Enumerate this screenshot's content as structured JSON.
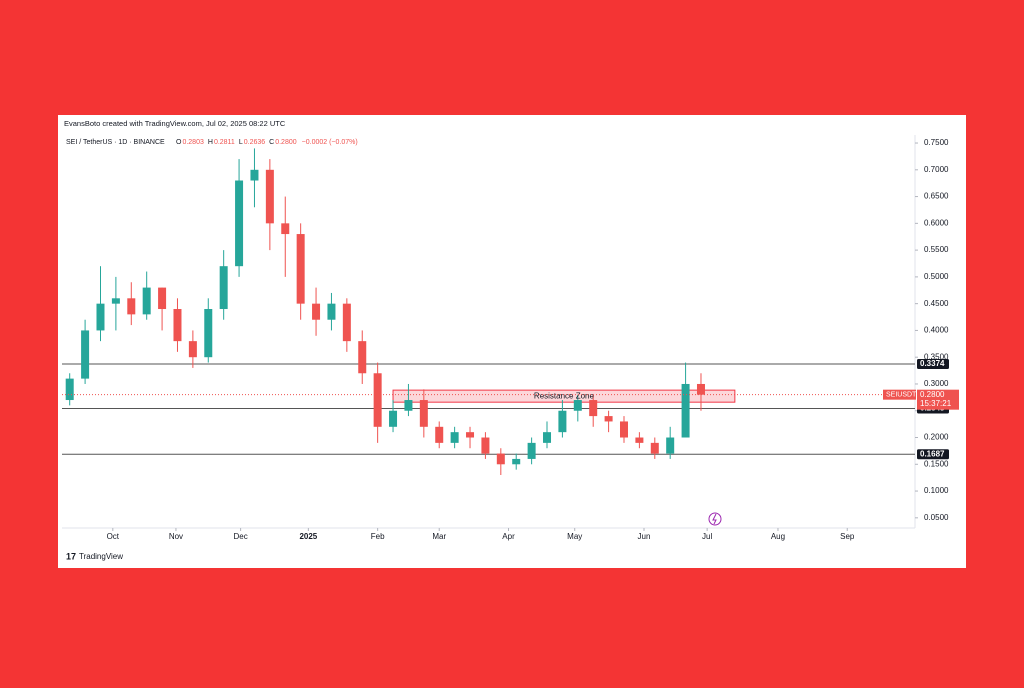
{
  "chart_data": {
    "type": "candlestick",
    "credit": "EvansBoto created with TradingView.com, Jul 02, 2025 08:22 UTC",
    "title": "SEI / TetherUS · 1D · BINANCE",
    "ohlc_legend": [
      {
        "key": "O",
        "text": "0.2803"
      },
      {
        "key": "H",
        "text": "0.2811"
      },
      {
        "key": "L",
        "text": "0.2636"
      },
      {
        "key": "C",
        "text": "0.2800"
      },
      {
        "key": "",
        "text": "−0.0002 (−0.07%)"
      }
    ],
    "open": [
      0.27,
      0.31,
      0.4,
      0.45,
      0.46,
      0.43,
      0.48,
      0.44,
      0.38,
      0.35,
      0.44,
      0.52,
      0.68,
      0.7,
      0.6,
      0.58,
      0.45,
      0.42,
      0.45,
      0.38,
      0.32,
      0.22,
      0.25,
      0.27,
      0.22,
      0.19,
      0.21,
      0.2,
      0.17,
      0.15,
      0.16,
      0.19,
      0.21,
      0.25,
      0.27,
      0.24,
      0.23,
      0.2,
      0.19,
      0.17,
      0.2,
      0.3
    ],
    "high": [
      0.32,
      0.42,
      0.52,
      0.5,
      0.49,
      0.51,
      0.48,
      0.46,
      0.4,
      0.46,
      0.55,
      0.72,
      0.74,
      0.72,
      0.65,
      0.6,
      0.48,
      0.47,
      0.46,
      0.4,
      0.34,
      0.27,
      0.3,
      0.29,
      0.23,
      0.22,
      0.22,
      0.21,
      0.18,
      0.17,
      0.2,
      0.23,
      0.27,
      0.28,
      0.28,
      0.25,
      0.24,
      0.21,
      0.2,
      0.22,
      0.34,
      0.32
    ],
    "low": [
      0.26,
      0.3,
      0.38,
      0.4,
      0.41,
      0.42,
      0.4,
      0.36,
      0.33,
      0.34,
      0.42,
      0.5,
      0.63,
      0.55,
      0.5,
      0.42,
      0.39,
      0.4,
      0.36,
      0.3,
      0.19,
      0.21,
      0.24,
      0.2,
      0.18,
      0.18,
      0.18,
      0.16,
      0.13,
      0.14,
      0.15,
      0.18,
      0.2,
      0.23,
      0.22,
      0.21,
      0.19,
      0.18,
      0.16,
      0.16,
      0.2,
      0.25
    ],
    "close": [
      0.31,
      0.4,
      0.45,
      0.46,
      0.43,
      0.48,
      0.44,
      0.38,
      0.35,
      0.44,
      0.52,
      0.68,
      0.7,
      0.6,
      0.58,
      0.45,
      0.42,
      0.45,
      0.38,
      0.32,
      0.22,
      0.25,
      0.27,
      0.22,
      0.19,
      0.21,
      0.2,
      0.17,
      0.15,
      0.16,
      0.19,
      0.21,
      0.25,
      0.27,
      0.24,
      0.23,
      0.2,
      0.19,
      0.17,
      0.2,
      0.3,
      0.28
    ],
    "up_color": "#26a69a",
    "down_color": "#ef5350",
    "xlim": [
      0,
      55.4
    ],
    "xticks": [
      {
        "value": 3.3,
        "label": "Oct"
      },
      {
        "value": 7.4,
        "label": "Nov"
      },
      {
        "value": 11.6,
        "label": "Dec"
      },
      {
        "value": 16.0,
        "label": "2025"
      },
      {
        "value": 20.5,
        "label": "Feb"
      },
      {
        "value": 24.5,
        "label": "Mar"
      },
      {
        "value": 29.0,
        "label": "Apr"
      },
      {
        "value": 33.3,
        "label": "May"
      },
      {
        "value": 37.8,
        "label": "Jun"
      },
      {
        "value": 41.9,
        "label": "Jul"
      },
      {
        "value": 46.5,
        "label": "Aug"
      },
      {
        "value": 51.0,
        "label": "Sep"
      }
    ],
    "ylim": [
      0.031,
      0.765
    ],
    "yticks": [
      {
        "value": 0.05,
        "label": "0.0500"
      },
      {
        "value": 0.1,
        "label": "0.1000"
      },
      {
        "value": 0.15,
        "label": "0.1500"
      },
      {
        "value": 0.2,
        "label": "0.2000"
      },
      {
        "value": 0.25,
        "label": "0.2500"
      },
      {
        "value": 0.3,
        "label": "0.3000"
      },
      {
        "value": 0.35,
        "label": "0.3500"
      },
      {
        "value": 0.4,
        "label": "0.4000"
      },
      {
        "value": 0.45,
        "label": "0.4500"
      },
      {
        "value": 0.5,
        "label": "0.5000"
      },
      {
        "value": 0.55,
        "label": "0.5500"
      },
      {
        "value": 0.6,
        "label": "0.6000"
      },
      {
        "value": 0.65,
        "label": "0.6500"
      },
      {
        "value": 0.7,
        "label": "0.7000"
      },
      {
        "value": 0.75,
        "label": "0.7500"
      }
    ],
    "levels": [
      0.3374,
      0.2543,
      0.1687
    ],
    "zone": {
      "label": "Resistance Zone",
      "xlim": [
        21.5,
        43.7
      ],
      "ylim": [
        0.266,
        0.2885
      ]
    },
    "price": {
      "symbol": "SEIUSDT",
      "value": 0.28,
      "label": "0.2800",
      "countdown": "15:37:21"
    },
    "brand": "TradingView"
  }
}
